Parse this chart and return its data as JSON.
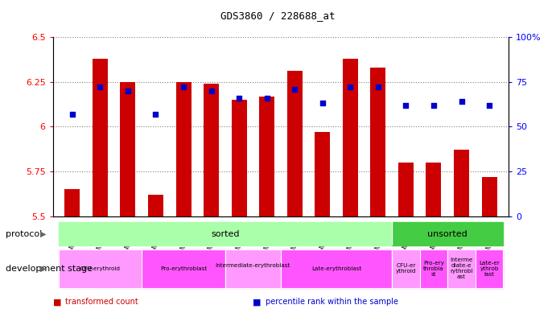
{
  "title": "GDS3860 / 228688_at",
  "samples": [
    "GSM559689",
    "GSM559690",
    "GSM559691",
    "GSM559692",
    "GSM559693",
    "GSM559694",
    "GSM559695",
    "GSM559696",
    "GSM559697",
    "GSM559698",
    "GSM559699",
    "GSM559700",
    "GSM559701",
    "GSM559702",
    "GSM559703",
    "GSM559704"
  ],
  "bar_values": [
    5.65,
    6.38,
    6.25,
    5.62,
    6.25,
    6.24,
    6.15,
    6.17,
    6.31,
    5.97,
    6.38,
    6.33,
    5.8,
    5.8,
    5.87,
    5.72
  ],
  "percentile_values": [
    57,
    72,
    70,
    57,
    72,
    70,
    66,
    66,
    71,
    63,
    72,
    72,
    62,
    62,
    64,
    62
  ],
  "bar_bottom": 5.5,
  "ylim_left": [
    5.5,
    6.5
  ],
  "ylim_right": [
    0,
    100
  ],
  "yticks_left": [
    5.5,
    5.75,
    6.0,
    6.25,
    6.5
  ],
  "ytick_labels_left": [
    "5.5",
    "5.75",
    "6",
    "6.25",
    "6.5"
  ],
  "yticks_right": [
    0,
    25,
    50,
    75,
    100
  ],
  "ytick_labels_right": [
    "0",
    "25",
    "50",
    "75",
    "100%"
  ],
  "bar_color": "#cc0000",
  "dot_color": "#0000cc",
  "protocol_color_sorted": "#aaffaa",
  "protocol_color_unsorted": "#44cc44",
  "dev_stage_groups": [
    {
      "label": "CFU-erythroid",
      "start": 0,
      "end": 3,
      "color": "#ff99ff"
    },
    {
      "label": "Pro-erythroblast",
      "start": 3,
      "end": 6,
      "color": "#ff55ff"
    },
    {
      "label": "Intermediate-erythroblast\n",
      "start": 6,
      "end": 8,
      "color": "#ff99ff"
    },
    {
      "label": "Late-erythroblast",
      "start": 8,
      "end": 12,
      "color": "#ff55ff"
    },
    {
      "label": "CFU-er\nythroid",
      "start": 12,
      "end": 13,
      "color": "#ff99ff"
    },
    {
      "label": "Pro-ery\nthrobla\nst",
      "start": 13,
      "end": 14,
      "color": "#ff55ff"
    },
    {
      "label": "Interme\ndiate-e\nrythrobl\nast",
      "start": 14,
      "end": 15,
      "color": "#ff99ff"
    },
    {
      "label": "Late-er\nythrob\nlast",
      "start": 15,
      "end": 16,
      "color": "#ff55ff"
    }
  ],
  "legend_items": [
    {
      "label": "transformed count",
      "color": "#cc0000"
    },
    {
      "label": "percentile rank within the sample",
      "color": "#0000cc"
    }
  ],
  "fig_width": 6.91,
  "fig_height": 3.84,
  "dpi": 100
}
